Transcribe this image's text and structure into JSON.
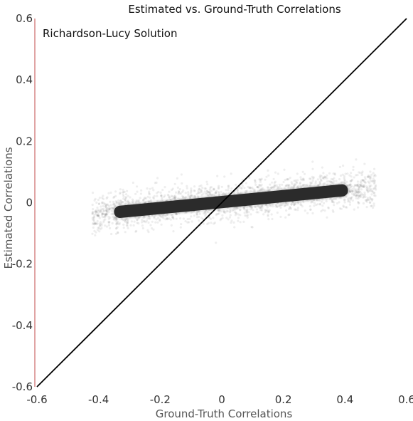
{
  "chart_data": {
    "type": "scatter",
    "title": "Estimated vs. Ground-Truth Correlations",
    "annotation": "Richardson-Lucy Solution",
    "xlabel": "Ground-Truth Correlations",
    "ylabel": "Estimated Correlations",
    "xlim": [
      -0.6,
      0.6
    ],
    "ylim": [
      -0.6,
      0.6
    ],
    "x_ticks": [
      "-0.6",
      "-0.4",
      "-0.2",
      "0",
      "0.2",
      "0.4",
      "0.6"
    ],
    "y_ticks": [
      "0.6",
      "0.4",
      "0.2",
      "0",
      "-0.2",
      "-0.4",
      "-0.6"
    ],
    "grid": false,
    "reference_line": {
      "x": [
        -0.6,
        0.6
      ],
      "y": [
        -0.6,
        0.6
      ]
    },
    "point_cloud": {
      "x_range": [
        -0.38,
        0.4
      ],
      "y_at_x_min": -0.03,
      "y_at_x_max": 0.04,
      "y_spread": 0.03,
      "core_x_range": [
        -0.33,
        0.39
      ],
      "core_y_at_x_min": -0.03,
      "core_y_at_x_max": 0.04,
      "core_half_height": 0.02
    },
    "colors": {
      "points": "#2b2b2b",
      "diagonal": "#000000",
      "axis": "#555555"
    }
  }
}
